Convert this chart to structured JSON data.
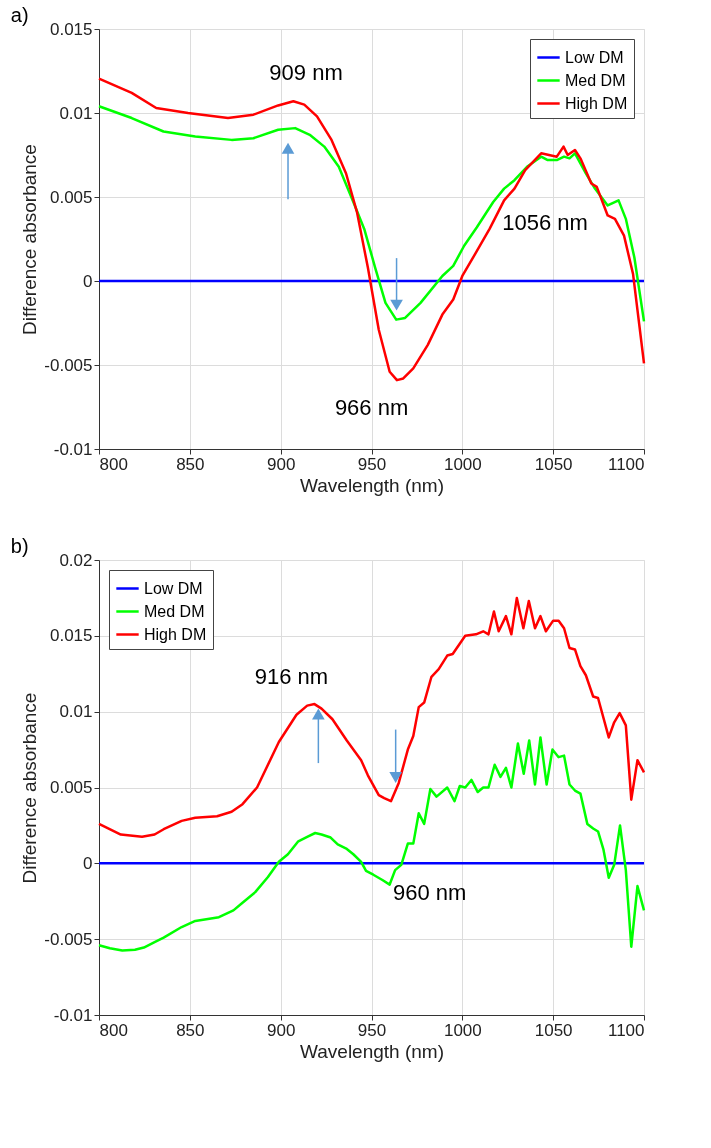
{
  "chart_data": [
    {
      "type": "line",
      "title": "a)",
      "xlabel": "Wavelength (nm)",
      "ylabel": "Difference absorbance",
      "xlim": [
        800,
        1100
      ],
      "xticks": [
        800,
        850,
        900,
        950,
        1000,
        1050,
        1100
      ],
      "ylim": [
        -0.01,
        0.015
      ],
      "yticks": [
        -0.01,
        -0.005,
        0,
        0.005,
        0.01,
        0.015
      ],
      "grid": true,
      "legend": "top right",
      "annotations": [
        {
          "text": "909 nm",
          "x": 909,
          "y": 0.0107
        },
        {
          "text": "966 nm",
          "x": 966,
          "y": -0.0059
        },
        {
          "text": "1056 nm",
          "x": 1056,
          "y": 0.008
        }
      ],
      "series": [
        {
          "name": "Low DM",
          "color": "#0000ff",
          "x": [
            800,
            1100
          ],
          "values": [
            0,
            0
          ]
        },
        {
          "name": "Med DM",
          "color": "#00ff00",
          "x": [
            800,
            818,
            835.5,
            853,
            873,
            885,
            898.6,
            908,
            916,
            924,
            932,
            940,
            946,
            952,
            957.7,
            963.6,
            968.5,
            977,
            989,
            995,
            1001,
            1008,
            1017,
            1023,
            1028.7,
            1035.6,
            1043.4,
            1047,
            1052,
            1056,
            1059,
            1062,
            1068,
            1073,
            1080,
            1086,
            1090,
            1094.7,
            1100
          ],
          "values": [
            0.0104,
            0.0097,
            0.0089,
            0.0086,
            0.0084,
            0.0085,
            0.009,
            0.0091,
            0.0087,
            0.008,
            0.0068,
            0.0047,
            0.0031,
            0.0008,
            -0.0013,
            -0.0023,
            -0.0022,
            -0.0013,
            0.0003,
            0.0009,
            0.0021,
            0.0032,
            0.0047,
            0.0055,
            0.006,
            0.0068,
            0.0074,
            0.0072,
            0.0072,
            0.0074,
            0.0073,
            0.0076,
            0.0064,
            0.0055,
            0.0045,
            0.0048,
            0.0037,
            0.0014,
            -0.0024
          ]
        },
        {
          "name": "High DM",
          "color": "#ff0000",
          "x": [
            800,
            818,
            831.5,
            849,
            871,
            885,
            898.6,
            907,
            913,
            920,
            928,
            936,
            942,
            948,
            954,
            960,
            964,
            967.5,
            973,
            981,
            989,
            995,
            1000,
            1007,
            1015,
            1023,
            1028.7,
            1034.6,
            1043.4,
            1052,
            1055.7,
            1058,
            1062,
            1065,
            1071,
            1074,
            1080,
            1084,
            1089,
            1094,
            1100
          ],
          "values": [
            0.01205,
            0.0112,
            0.0103,
            0.01,
            0.0097,
            0.0099,
            0.01045,
            0.0107,
            0.0105,
            0.0098,
            0.0084,
            0.0064,
            0.0041,
            0.0008,
            -0.0029,
            -0.0054,
            -0.0059,
            -0.0058,
            -0.0052,
            -0.0038,
            -0.002,
            -0.0011,
            0.0003,
            0.0016,
            0.0031,
            0.0048,
            0.0055,
            0.0066,
            0.0076,
            0.0074,
            0.008,
            0.0075,
            0.0078,
            0.0073,
            0.0058,
            0.0056,
            0.0039,
            0.0037,
            0.0027,
            0.0004,
            -0.0049
          ]
        }
      ]
    },
    {
      "type": "line",
      "title": "b)",
      "xlabel": "Wavelength (nm)",
      "ylabel": "Difference absorbance",
      "xlim": [
        800,
        1100
      ],
      "xticks": [
        800,
        850,
        900,
        950,
        1000,
        1050,
        1100
      ],
      "ylim": [
        -0.01,
        0.02
      ],
      "yticks": [
        -0.01,
        -0.005,
        0,
        0.005,
        0.01,
        0.015,
        0.02
      ],
      "grid": true,
      "legend": "top left",
      "annotations": [
        {
          "text": "916 nm",
          "x": 918,
          "y": 0.0105
        },
        {
          "text": "960 nm",
          "x": 960,
          "y": -0.0014
        }
      ],
      "series": [
        {
          "name": "Low DM",
          "color": "#0000ff",
          "x": [
            800,
            1100
          ],
          "values": [
            0,
            0
          ]
        },
        {
          "name": "Med DM",
          "color": "#00ff00",
          "x": [
            800,
            806,
            812.8,
            819.8,
            824.7,
            830.6,
            835.6,
            845.5,
            853,
            866,
            874,
            879,
            886,
            893,
            899,
            904,
            909.7,
            914.6,
            919,
            922.5,
            927.5,
            931.4,
            936.4,
            940,
            944.3,
            947,
            951,
            956,
            960,
            963,
            966.4,
            970,
            973,
            976,
            979,
            982.4,
            985.8,
            991.7,
            995.7,
            998.6,
            1001.6,
            1005,
            1008.5,
            1011.5,
            1014.4,
            1017.8,
            1021,
            1024,
            1027,
            1030.6,
            1033.8,
            1036.8,
            1040,
            1043,
            1046.4,
            1049.6,
            1053,
            1056,
            1059,
            1062,
            1065,
            1068.8,
            1072,
            1074.7,
            1077.7,
            1080.6,
            1083.6,
            1086.8,
            1090,
            1093,
            1096.4,
            1100
          ],
          "values": [
            -0.0054,
            -0.0056,
            -0.00575,
            -0.0057,
            -0.00555,
            -0.0052,
            -0.0049,
            -0.0042,
            -0.0038,
            -0.00355,
            -0.0031,
            -0.0026,
            -0.0019,
            -0.0009,
            0.0001,
            0.0006,
            0.00145,
            0.00175,
            0.002,
            0.0019,
            0.0017,
            0.00125,
            0.00095,
            0.0006,
            0.0001,
            -0.0005,
            -0.00075,
            -0.0011,
            -0.0014,
            -0.00045,
            -0.0001,
            0.0013,
            0.0013,
            0.0033,
            0.0026,
            0.0049,
            0.0044,
            0.005,
            0.0041,
            0.0051,
            0.005,
            0.0055,
            0.0047,
            0.005,
            0.005,
            0.0065,
            0.0057,
            0.0063,
            0.005,
            0.0079,
            0.0059,
            0.0081,
            0.0052,
            0.0083,
            0.0052,
            0.0075,
            0.007,
            0.0071,
            0.0052,
            0.0048,
            0.0046,
            0.0026,
            0.0023,
            0.0021,
            0.0009,
            -0.00095,
            -0.0001,
            0.0025,
            -0.00045,
            -0.0055,
            -0.0015,
            -0.0031
          ]
        },
        {
          "name": "High DM",
          "color": "#ff0000",
          "x": [
            800,
            812,
            823.7,
            830.6,
            835.6,
            845.5,
            853,
            865,
            873,
            879,
            887,
            899,
            908.7,
            914.6,
            918.6,
            922.5,
            928.5,
            936.4,
            944.3,
            948,
            954,
            957,
            960.7,
            965,
            970,
            973,
            976,
            979,
            983,
            987,
            991.7,
            994.7,
            1001.6,
            1007.5,
            1011.5,
            1014.4,
            1017.4,
            1020,
            1024,
            1027,
            1030,
            1033.6,
            1036.6,
            1040,
            1043,
            1046,
            1050,
            1053,
            1056,
            1059,
            1062,
            1065,
            1068,
            1072,
            1074.7,
            1080.6,
            1083.6,
            1086.6,
            1090,
            1093,
            1096.4,
            1100
          ],
          "values": [
            0.0026,
            0.0019,
            0.00175,
            0.0019,
            0.00225,
            0.0028,
            0.003,
            0.0031,
            0.0034,
            0.0039,
            0.005,
            0.008,
            0.0098,
            0.0104,
            0.0105,
            0.0102,
            0.0095,
            0.0081,
            0.0068,
            0.0058,
            0.0045,
            0.0043,
            0.0041,
            0.0053,
            0.0075,
            0.0084,
            0.0103,
            0.0106,
            0.0123,
            0.0128,
            0.0137,
            0.0138,
            0.015,
            0.0151,
            0.0153,
            0.0151,
            0.0166,
            0.0153,
            0.0163,
            0.0151,
            0.0175,
            0.0155,
            0.0173,
            0.0155,
            0.0163,
            0.0153,
            0.016,
            0.016,
            0.0155,
            0.0142,
            0.0141,
            0.013,
            0.0124,
            0.011,
            0.0109,
            0.0083,
            0.0093,
            0.0099,
            0.0091,
            0.0042,
            0.0068,
            0.006
          ]
        }
      ]
    }
  ]
}
